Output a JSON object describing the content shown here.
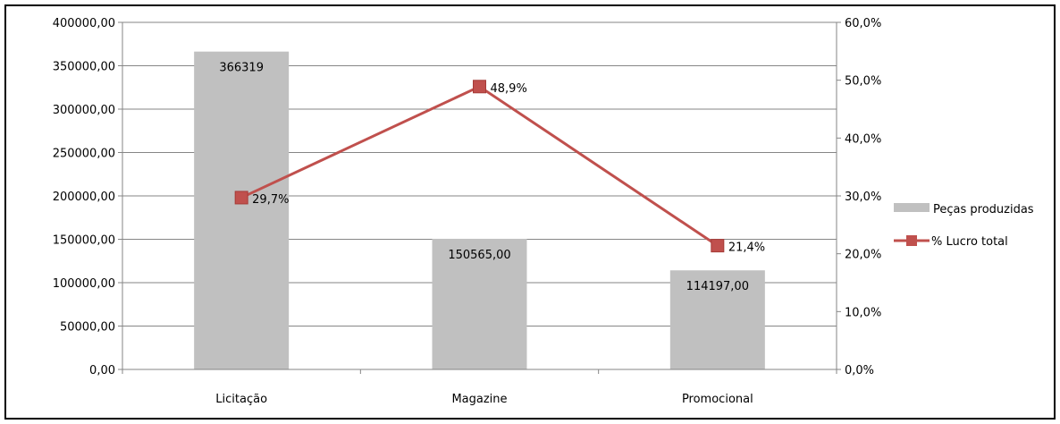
{
  "chart_data": {
    "type": "bar",
    "categories": [
      "Licitação",
      "Magazine",
      "Promocional"
    ],
    "series": [
      {
        "name": "Peças produzidas",
        "type": "bar",
        "axis": "left",
        "values": [
          366319,
          150565,
          114197
        ],
        "value_labels": [
          "366319",
          "150565,00",
          "114197,00"
        ],
        "color": "#C0C0C0"
      },
      {
        "name": "% Lucro total",
        "type": "line",
        "axis": "right",
        "values": [
          29.7,
          48.9,
          21.4
        ],
        "value_labels": [
          "29,7%",
          "48,9%",
          "21,4%"
        ],
        "color": "#C0504D"
      }
    ],
    "y_left": {
      "range": [
        0,
        400000
      ],
      "ticks": [
        0,
        50000,
        100000,
        150000,
        200000,
        250000,
        300000,
        350000,
        400000
      ],
      "tick_labels": [
        "0,00",
        "50000,00",
        "100000,00",
        "150000,00",
        "200000,00",
        "250000,00",
        "300000,00",
        "350000,00",
        "400000,00"
      ]
    },
    "y_right": {
      "range": [
        0,
        60
      ],
      "ticks": [
        0,
        10,
        20,
        30,
        40,
        50,
        60
      ],
      "tick_labels": [
        "0,0%",
        "10,0%",
        "20,0%",
        "30,0%",
        "40,0%",
        "50,0%",
        "60,0%"
      ]
    },
    "title": "",
    "xlabel": "",
    "grid": true,
    "legend_position": "right"
  }
}
